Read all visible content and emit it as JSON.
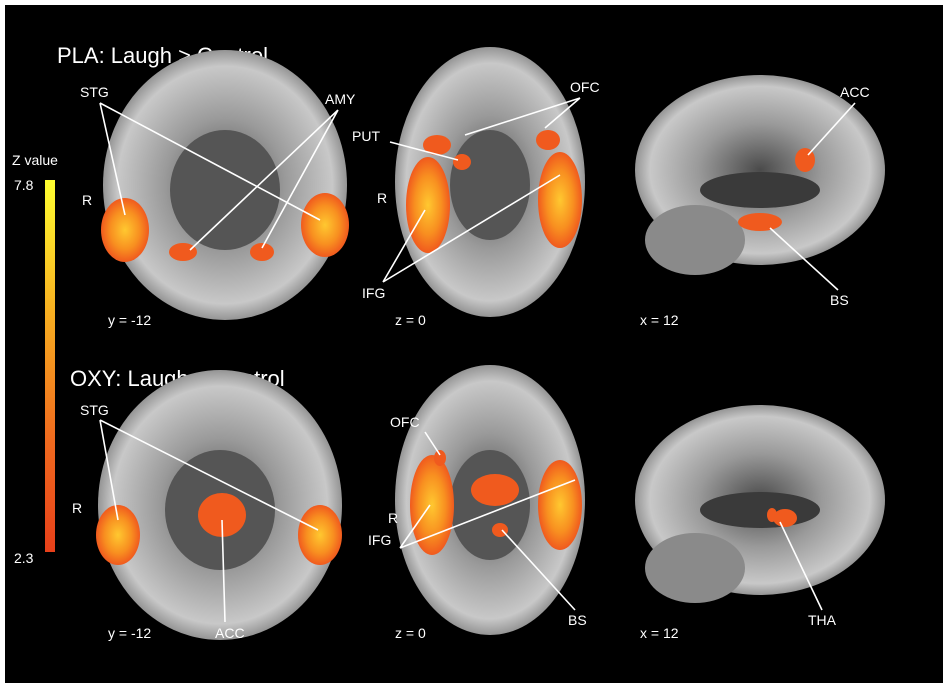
{
  "colorbar": {
    "label": "Z value",
    "max": 7.8,
    "min": 2.3
  },
  "panels": [
    {
      "title": "PLA: Laugh > Control",
      "slices": [
        {
          "coordinate": "y = -12",
          "labels": [
            "STG",
            "AMY",
            "R"
          ]
        },
        {
          "coordinate": "z = 0",
          "labels": [
            "PUT",
            "OFC",
            "R",
            "IFG"
          ]
        },
        {
          "coordinate": "x = 12",
          "labels": [
            "ACC",
            "BS"
          ]
        }
      ]
    },
    {
      "title": "OXY: Laugh > Control",
      "slices": [
        {
          "coordinate": "y = -12",
          "labels": [
            "STG",
            "R",
            "ACC"
          ]
        },
        {
          "coordinate": "z = 0",
          "labels": [
            "OFC",
            "R",
            "IFG",
            "BS"
          ]
        },
        {
          "coordinate": "x = 12",
          "labels": [
            "THA"
          ]
        }
      ]
    }
  ]
}
